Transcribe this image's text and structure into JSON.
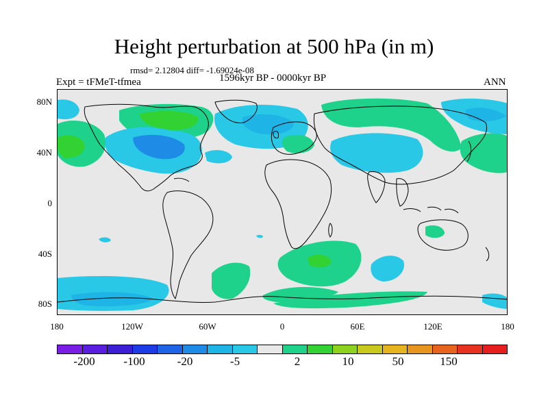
{
  "title": "Height perturbation at 500 hPa (in m)",
  "rmsd_text": "rmsd= 2.12804 diff= -1.69024e-08",
  "experiment_label": "Expt = tFMeT-tfmea",
  "period_label": "1596kyr BP - 0000kyr BP",
  "season_label": "ANN",
  "y_axis_labels": [
    "80N",
    "40N",
    "0",
    "40S",
    "80S"
  ],
  "x_axis_labels": [
    "180",
    "120W",
    "60W",
    "0",
    "60E",
    "120E",
    "180"
  ],
  "colorbar": {
    "colors": [
      "#7a1ee6",
      "#5a1ee0",
      "#3c1ed6",
      "#1e3ce6",
      "#1e64e6",
      "#1e8ce6",
      "#1eb4e6",
      "#28c8e6",
      "#e8e8e8",
      "#1ed28c",
      "#32d232",
      "#8cd21e",
      "#c8c81e",
      "#e6b41e",
      "#e6961e",
      "#e6641e",
      "#e6321e",
      "#e61e1e"
    ],
    "labels": [
      "-200",
      "-100",
      "-20",
      "-5",
      "2",
      "10",
      "50",
      "150"
    ]
  },
  "map_colors": {
    "ocean_land_bg": "#e8e8e8",
    "negative_light": "#28c8e6",
    "negative_mid": "#1eb4e6",
    "negative_dark": "#1e8ce6",
    "positive_light": "#1ed28c",
    "positive_mid": "#32d232",
    "coast": "#000000"
  }
}
